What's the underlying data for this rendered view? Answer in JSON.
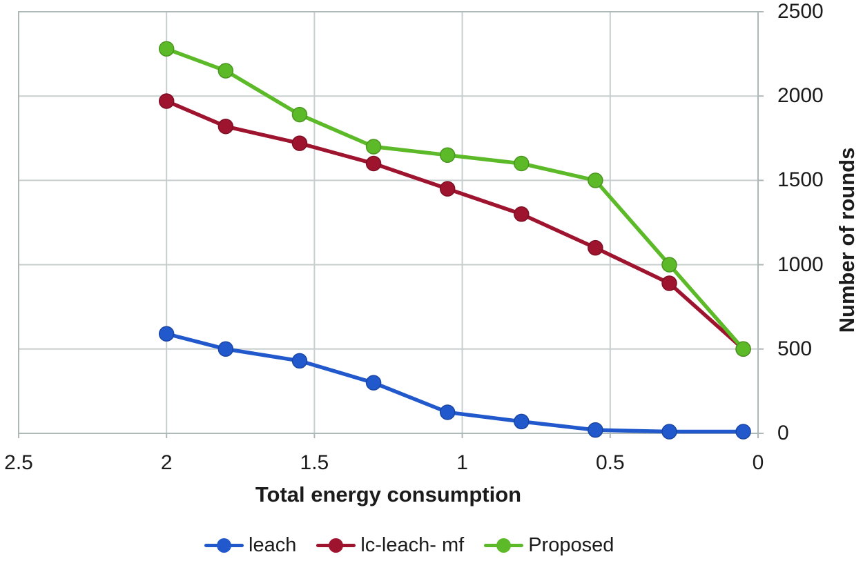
{
  "figure": {
    "background": "#ffffff"
  },
  "chart_data": {
    "type": "line",
    "title": "",
    "xlabel": "Total energy consumption",
    "ylabel": "Number of rounds",
    "x": [
      2,
      1.8,
      1.55,
      1.3,
      1.05,
      0.8,
      0.55,
      0.3,
      0.05
    ],
    "series": [
      {
        "name": "leach",
        "color": "#2158cc",
        "values": [
          590,
          500,
          430,
          300,
          125,
          70,
          20,
          10,
          10
        ]
      },
      {
        "name": "lc-leach- mf",
        "color": "#9e132e",
        "values": [
          1970,
          1820,
          1720,
          1600,
          1450,
          1300,
          1100,
          890,
          500
        ]
      },
      {
        "name": "Proposed",
        "color": "#5cba28",
        "values": [
          2280,
          2150,
          1890,
          1700,
          1650,
          1600,
          1500,
          1000,
          500
        ]
      }
    ],
    "x_ticks": [
      2.5,
      2,
      1.5,
      1,
      0.5,
      0
    ],
    "y_ticks": [
      0,
      500,
      1000,
      1500,
      2000,
      2500
    ],
    "xlim": [
      2.5,
      0
    ],
    "ylim": [
      0,
      2500
    ],
    "x_axis_reversed": true,
    "y_axis_side": "right",
    "grid": true,
    "legend_position": "bottom",
    "colors": {
      "grid": "#c7cecd",
      "border": "#aeb8b7",
      "text": "#1b1b1b"
    }
  }
}
